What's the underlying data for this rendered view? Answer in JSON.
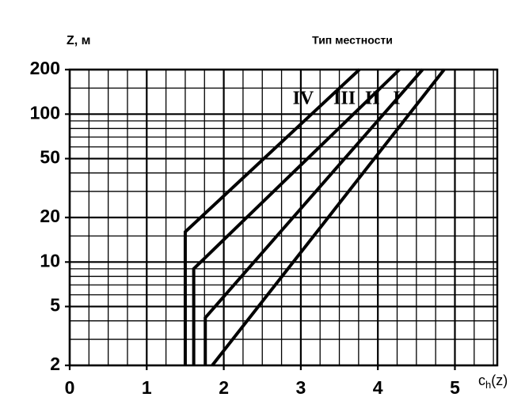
{
  "chart_data": {
    "type": "line",
    "title": "Тип местности",
    "ylabel": "Z, м",
    "xlabel": {
      "base": "c",
      "sub": "h",
      "rest": "(z)"
    },
    "ylog": true,
    "grid": true,
    "color": "#000000",
    "xlim": [
      0,
      5.55
    ],
    "ylim": [
      2,
      200
    ],
    "xticks": [
      0,
      1,
      2,
      3,
      4,
      5
    ],
    "yticks": [
      2,
      5,
      10,
      20,
      50,
      100,
      200
    ],
    "minor_xticks": [
      0.25,
      0.5,
      0.75,
      1.25,
      1.5,
      1.75,
      2.25,
      2.5,
      2.75,
      3.25,
      3.5,
      3.75,
      4.25,
      4.5,
      4.75,
      5.25,
      5.5
    ],
    "minor_yticks": [
      3,
      4,
      6,
      7,
      8,
      9,
      15,
      30,
      40,
      60,
      70,
      80,
      90,
      150
    ],
    "series": [
      {
        "name": "IV",
        "x": [
          1.5,
          1.5,
          3.76
        ],
        "values": [
          2,
          16,
          200
        ]
      },
      {
        "name": "III",
        "x": [
          1.61,
          1.61,
          4.28
        ],
        "values": [
          2,
          9,
          200
        ]
      },
      {
        "name": "II",
        "x": [
          1.76,
          1.76,
          4.58
        ],
        "values": [
          2,
          4.2,
          200
        ]
      },
      {
        "name": "I",
        "x": [
          1.85,
          4.86
        ],
        "values": [
          2,
          200
        ]
      }
    ]
  }
}
